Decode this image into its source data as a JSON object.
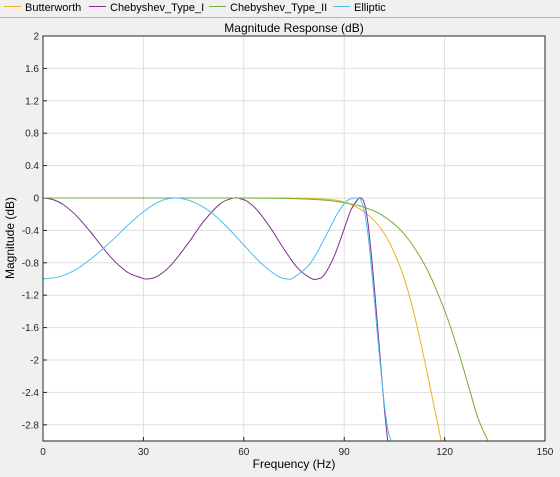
{
  "chart_data": {
    "type": "line",
    "title": "Magnitude Response (dB)",
    "xlabel": "Frequency (Hz)",
    "ylabel": "Magnitude (dB)",
    "xlim": [
      0,
      150
    ],
    "ylim": [
      -3,
      2
    ],
    "grid": true,
    "legend_position": "top",
    "x_ticks": [
      0,
      30,
      60,
      90,
      120,
      150
    ],
    "x_tick_labels": [
      "0",
      "30",
      "60",
      "90",
      "120",
      "150"
    ],
    "y_ticks": [
      2,
      1.6,
      1.2,
      0.8,
      0.4,
      0,
      -0.4,
      -0.8,
      -1.2,
      -1.6,
      -2,
      -2.4,
      -2.8
    ],
    "y_tick_labels": [
      "2",
      "1.6",
      "1.2",
      "0.8",
      "0.4",
      "0",
      "-0.4",
      "-0.8",
      "-1.2",
      "-1.6",
      "-2",
      "-2.4",
      "-2.8"
    ],
    "series": [
      {
        "name": "Butterworth",
        "color": "#EDB120",
        "x": [
          0,
          20,
          40,
          60,
          70,
          80,
          85,
          88,
          90,
          93,
          96,
          99,
          102,
          105,
          108,
          111,
          114,
          117,
          119
        ],
        "y": [
          0,
          0,
          0,
          0,
          -0.001,
          -0.006,
          -0.015,
          -0.03,
          -0.05,
          -0.1,
          -0.17,
          -0.28,
          -0.44,
          -0.68,
          -1.0,
          -1.45,
          -2.0,
          -2.6,
          -3.0
        ]
      },
      {
        "name": "Chebyshev_Type_I",
        "color": "#7E2F8E",
        "x": [
          0,
          3,
          6,
          10,
          15,
          20,
          25,
          29,
          31,
          34,
          38,
          43,
          48,
          53,
          57,
          59,
          61,
          64,
          68,
          72,
          76,
          80,
          82,
          84,
          87,
          90,
          92,
          94,
          95,
          96,
          97,
          98,
          99,
          100,
          101,
          102,
          103
        ],
        "y": [
          0,
          -0.02,
          -0.08,
          -0.22,
          -0.46,
          -0.72,
          -0.91,
          -0.98,
          -1.0,
          -0.97,
          -0.84,
          -0.58,
          -0.29,
          -0.07,
          0,
          -0.01,
          -0.04,
          -0.15,
          -0.37,
          -0.63,
          -0.86,
          -0.99,
          -1.0,
          -0.95,
          -0.72,
          -0.38,
          -0.15,
          -0.02,
          0,
          -0.06,
          -0.28,
          -0.65,
          -1.1,
          -1.6,
          -2.1,
          -2.6,
          -3.0
        ]
      },
      {
        "name": "Chebyshev_Type_II",
        "color": "#77AC30",
        "x": [
          0,
          20,
          40,
          60,
          70,
          75,
          80,
          85,
          88,
          91,
          94,
          97,
          100,
          103,
          106,
          109,
          112,
          115,
          118,
          121,
          124,
          127,
          130,
          133
        ],
        "y": [
          0,
          0,
          0,
          0,
          -0.003,
          -0.008,
          -0.015,
          -0.03,
          -0.045,
          -0.065,
          -0.09,
          -0.13,
          -0.18,
          -0.26,
          -0.36,
          -0.5,
          -0.68,
          -0.9,
          -1.18,
          -1.5,
          -1.88,
          -2.3,
          -2.72,
          -3.0
        ]
      },
      {
        "name": "Elliptic",
        "color": "#4DBEEE",
        "x": [
          0,
          5,
          10,
          15,
          20,
          25,
          30,
          35,
          40,
          45,
          50,
          55,
          60,
          65,
          70,
          73,
          75,
          80,
          85,
          88,
          91,
          94,
          95,
          96,
          97,
          98,
          99,
          100,
          101,
          102,
          103,
          104
        ],
        "y": [
          -1.0,
          -0.97,
          -0.88,
          -0.73,
          -0.55,
          -0.35,
          -0.17,
          -0.04,
          0,
          -0.05,
          -0.17,
          -0.36,
          -0.58,
          -0.8,
          -0.96,
          -1.0,
          -0.98,
          -0.8,
          -0.43,
          -0.19,
          -0.03,
          0,
          -0.03,
          -0.16,
          -0.42,
          -0.8,
          -1.25,
          -1.72,
          -2.15,
          -2.55,
          -2.85,
          -3.0
        ]
      }
    ]
  }
}
